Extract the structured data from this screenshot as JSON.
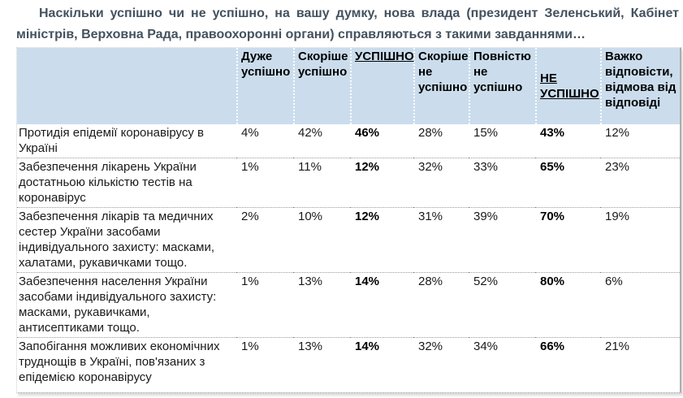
{
  "title": "Наскільки успішно чи не успішно, на вашу думку, нова влада (президент Зеленський, Кабінет міністрів, Верховна Рада, правоохоронні органи) справляються з такими завданнями…",
  "table": {
    "columns": [
      {
        "label": "",
        "emphasis": false
      },
      {
        "label": "Дуже успішно",
        "emphasis": false
      },
      {
        "label": "Скоріше успішно",
        "emphasis": false
      },
      {
        "label": "УСПІШНО",
        "emphasis": true
      },
      {
        "label": "Скоріше не успішно",
        "emphasis": false
      },
      {
        "label": "Повністю не успішно",
        "emphasis": false
      },
      {
        "label": "НЕ УСПІШНО",
        "emphasis": true
      },
      {
        "label": "Важко відповісти, відмова від відповіді",
        "emphasis": false
      }
    ],
    "rows": [
      {
        "label": "Протидія епідемії коронавірусу в Україні",
        "values": [
          "4%",
          "42%",
          "46%",
          "28%",
          "15%",
          "43%",
          "12%"
        ]
      },
      {
        "label": "Забезпечення лікарень України достатньою кількістю тестів на коронавірус",
        "values": [
          "1%",
          "11%",
          "12%",
          "32%",
          "33%",
          "65%",
          "23%"
        ]
      },
      {
        "label": "Забезпечення лікарів та медичних сестер України засобами індивідуального захисту: масками, халатами, рукавичками тощо.",
        "values": [
          "2%",
          "10%",
          "12%",
          "31%",
          "39%",
          "70%",
          "19%"
        ]
      },
      {
        "label": "Забезпечення населення України засобами індивідуального захисту: масками, рукавичками, антисептиками тощо.",
        "values": [
          "1%",
          "13%",
          "14%",
          "28%",
          "52%",
          "80%",
          "6%"
        ]
      },
      {
        "label": "Запобігання можливих економічних труднощів в Україні, пов'язаних з епідемією коронавірусу",
        "values": [
          "1%",
          "13%",
          "14%",
          "32%",
          "34%",
          "66%",
          "21%"
        ]
      }
    ]
  },
  "colors": {
    "header_background": "#cbddec",
    "title_text": "#44525e",
    "row_separator": "#999999",
    "table_right_border": "#adadad"
  }
}
